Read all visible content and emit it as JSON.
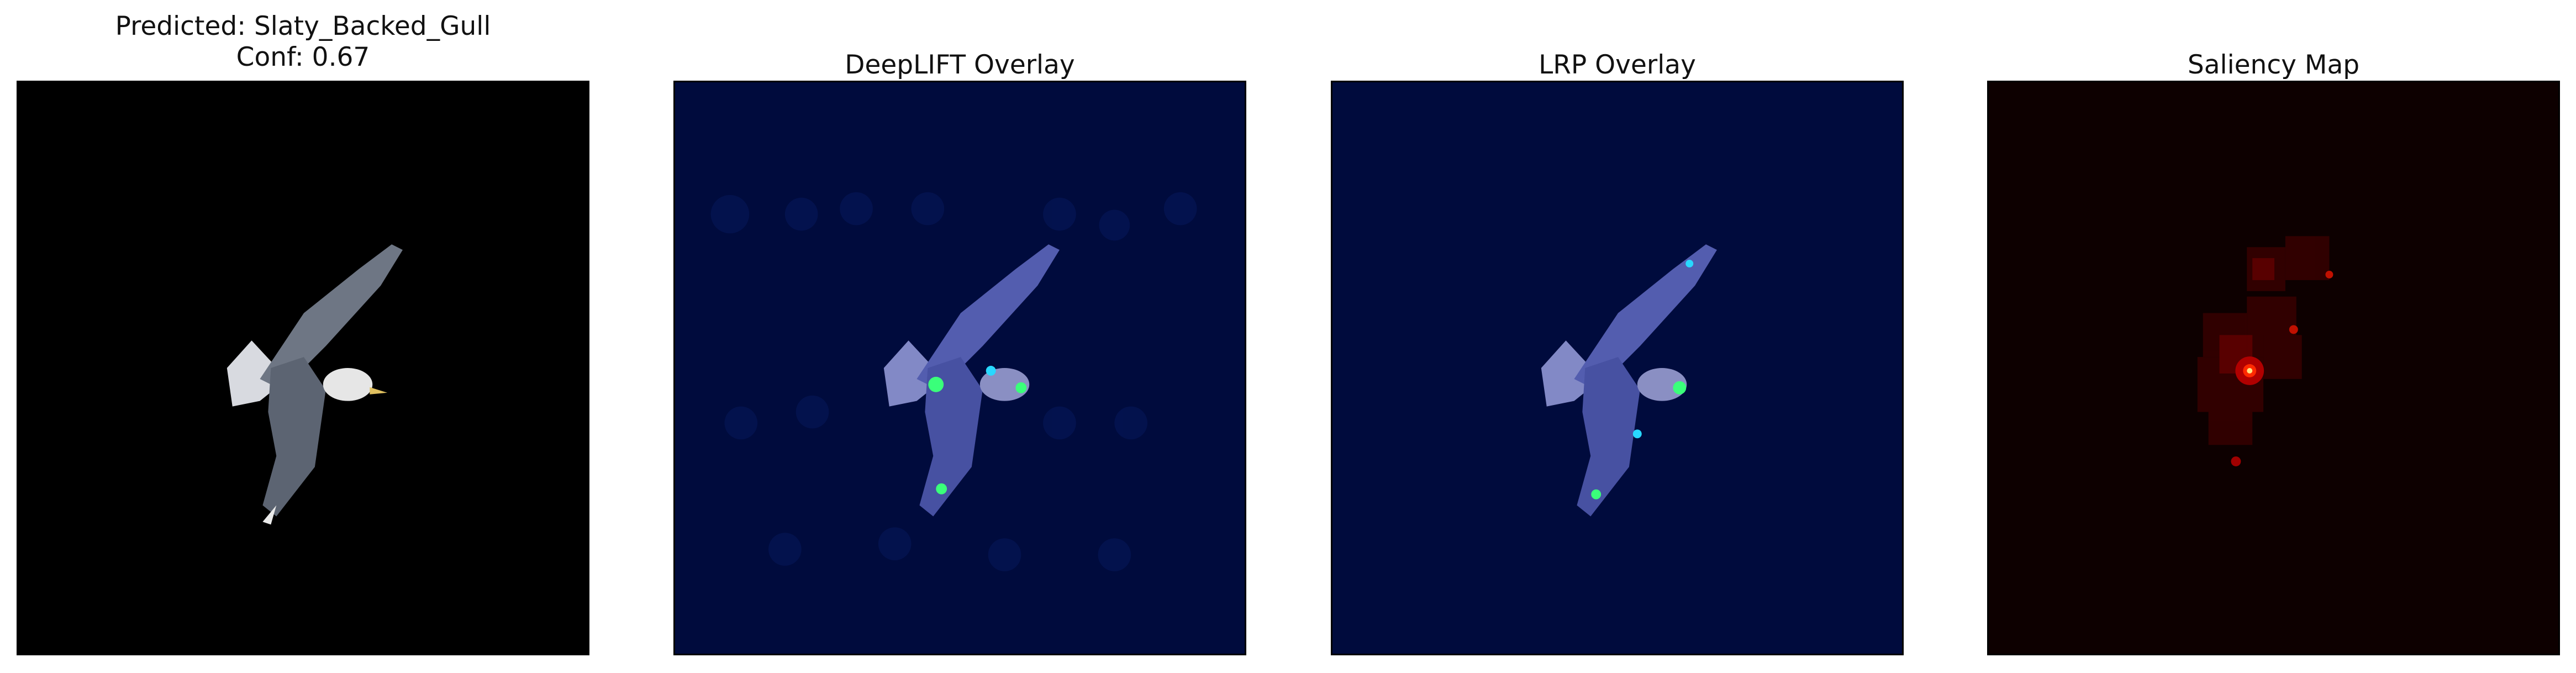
{
  "panels": [
    {
      "title_line1": "Predicted: Slaty_Backed_Gull",
      "title_line2": "Conf: 0.67",
      "image": "bird-photo"
    },
    {
      "title": "DeepLIFT Overlay",
      "image": "deeplift-overlay"
    },
    {
      "title": "LRP Overlay",
      "image": "lrp-overlay"
    },
    {
      "title": "Saliency Map",
      "image": "saliency-map"
    }
  ],
  "colors": {
    "photo_background": "#000000",
    "overlay_background": "#000b3d",
    "saliency_background": "#0d0000",
    "hotspot": "#ff2a00"
  }
}
